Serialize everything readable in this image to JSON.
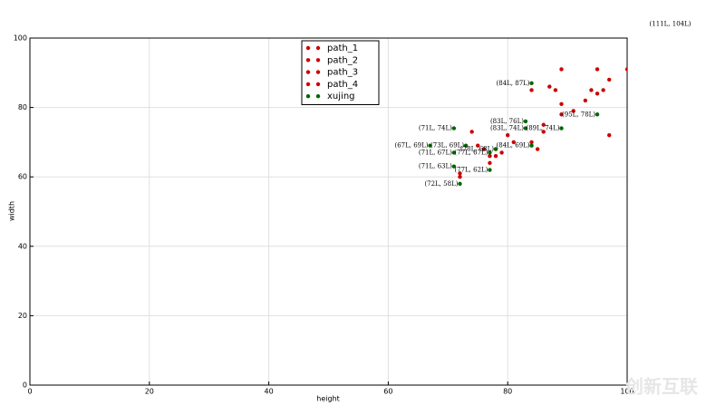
{
  "chart_data": {
    "type": "scatter",
    "xlabel": "height",
    "ylabel": "width",
    "xlim": [
      0,
      100
    ],
    "ylim": [
      0,
      100
    ],
    "xticks": [
      0,
      20,
      40,
      60,
      80,
      100
    ],
    "yticks": [
      0,
      20,
      40,
      60,
      80,
      100
    ],
    "grid": true,
    "legend": "upper center",
    "series": [
      {
        "name": "path_1",
        "color": "#cc0000",
        "x": [
          74,
          72,
          75,
          77,
          84,
          87,
          89,
          95
        ],
        "values": [
          73,
          60,
          69,
          66,
          85,
          86,
          91,
          91
        ]
      },
      {
        "name": "path_2",
        "color": "#cc0000",
        "x": [
          76,
          77,
          78,
          80,
          84,
          88,
          93,
          100
        ],
        "values": [
          68,
          64,
          66,
          72,
          70,
          85,
          82,
          91
        ]
      },
      {
        "name": "path_3",
        "color": "#cc0000",
        "x": [
          78,
          79,
          81,
          85,
          89,
          94,
          96,
          97
        ],
        "values": [
          68,
          67,
          70,
          68,
          81,
          85,
          85,
          88
        ]
      },
      {
        "name": "path_4",
        "color": "#cc0000",
        "x": [
          72,
          86,
          86,
          89,
          91,
          95,
          97
        ],
        "values": [
          61,
          73,
          75,
          78,
          79,
          84,
          72
        ]
      },
      {
        "name": "xujing",
        "color": "#006600",
        "x": [
          84,
          71,
          67,
          73,
          71,
          77,
          78,
          84,
          83,
          83,
          89,
          95,
          71,
          77,
          72
        ],
        "values": [
          87,
          74,
          69,
          69,
          67,
          67,
          68,
          69,
          76,
          74,
          74,
          78,
          63,
          62,
          58
        ]
      }
    ],
    "annotations": [
      {
        "label": "(84L, 87L)",
        "x": 84,
        "y": 87
      },
      {
        "label": "(71L, 74L)",
        "x": 71,
        "y": 74
      },
      {
        "label": "(67L, 69L)",
        "x": 67,
        "y": 69
      },
      {
        "label": "(73L, 69L)",
        "x": 73,
        "y": 69
      },
      {
        "label": "(71L, 67L)",
        "x": 71,
        "y": 67
      },
      {
        "label": "(77L, 67L)",
        "x": 77,
        "y": 67
      },
      {
        "label": "(78L, 68L)",
        "x": 78,
        "y": 68
      },
      {
        "label": "(84L, 69L)",
        "x": 84,
        "y": 69
      },
      {
        "label": "(83L, 76L)",
        "x": 83,
        "y": 76
      },
      {
        "label": "(83L, 74L)",
        "x": 83,
        "y": 74
      },
      {
        "label": "(89L, 74L)",
        "x": 89,
        "y": 74
      },
      {
        "label": "(95L, 78L)",
        "x": 95,
        "y": 78
      },
      {
        "label": "(71L, 63L)",
        "x": 71,
        "y": 63
      },
      {
        "label": "(77L, 62L)",
        "x": 77,
        "y": 62
      },
      {
        "label": "(72L, 58L)",
        "x": 72,
        "y": 58
      },
      {
        "label": "(111L, 104L)",
        "x": 111,
        "y": 104
      }
    ],
    "watermark": "创新互联"
  }
}
